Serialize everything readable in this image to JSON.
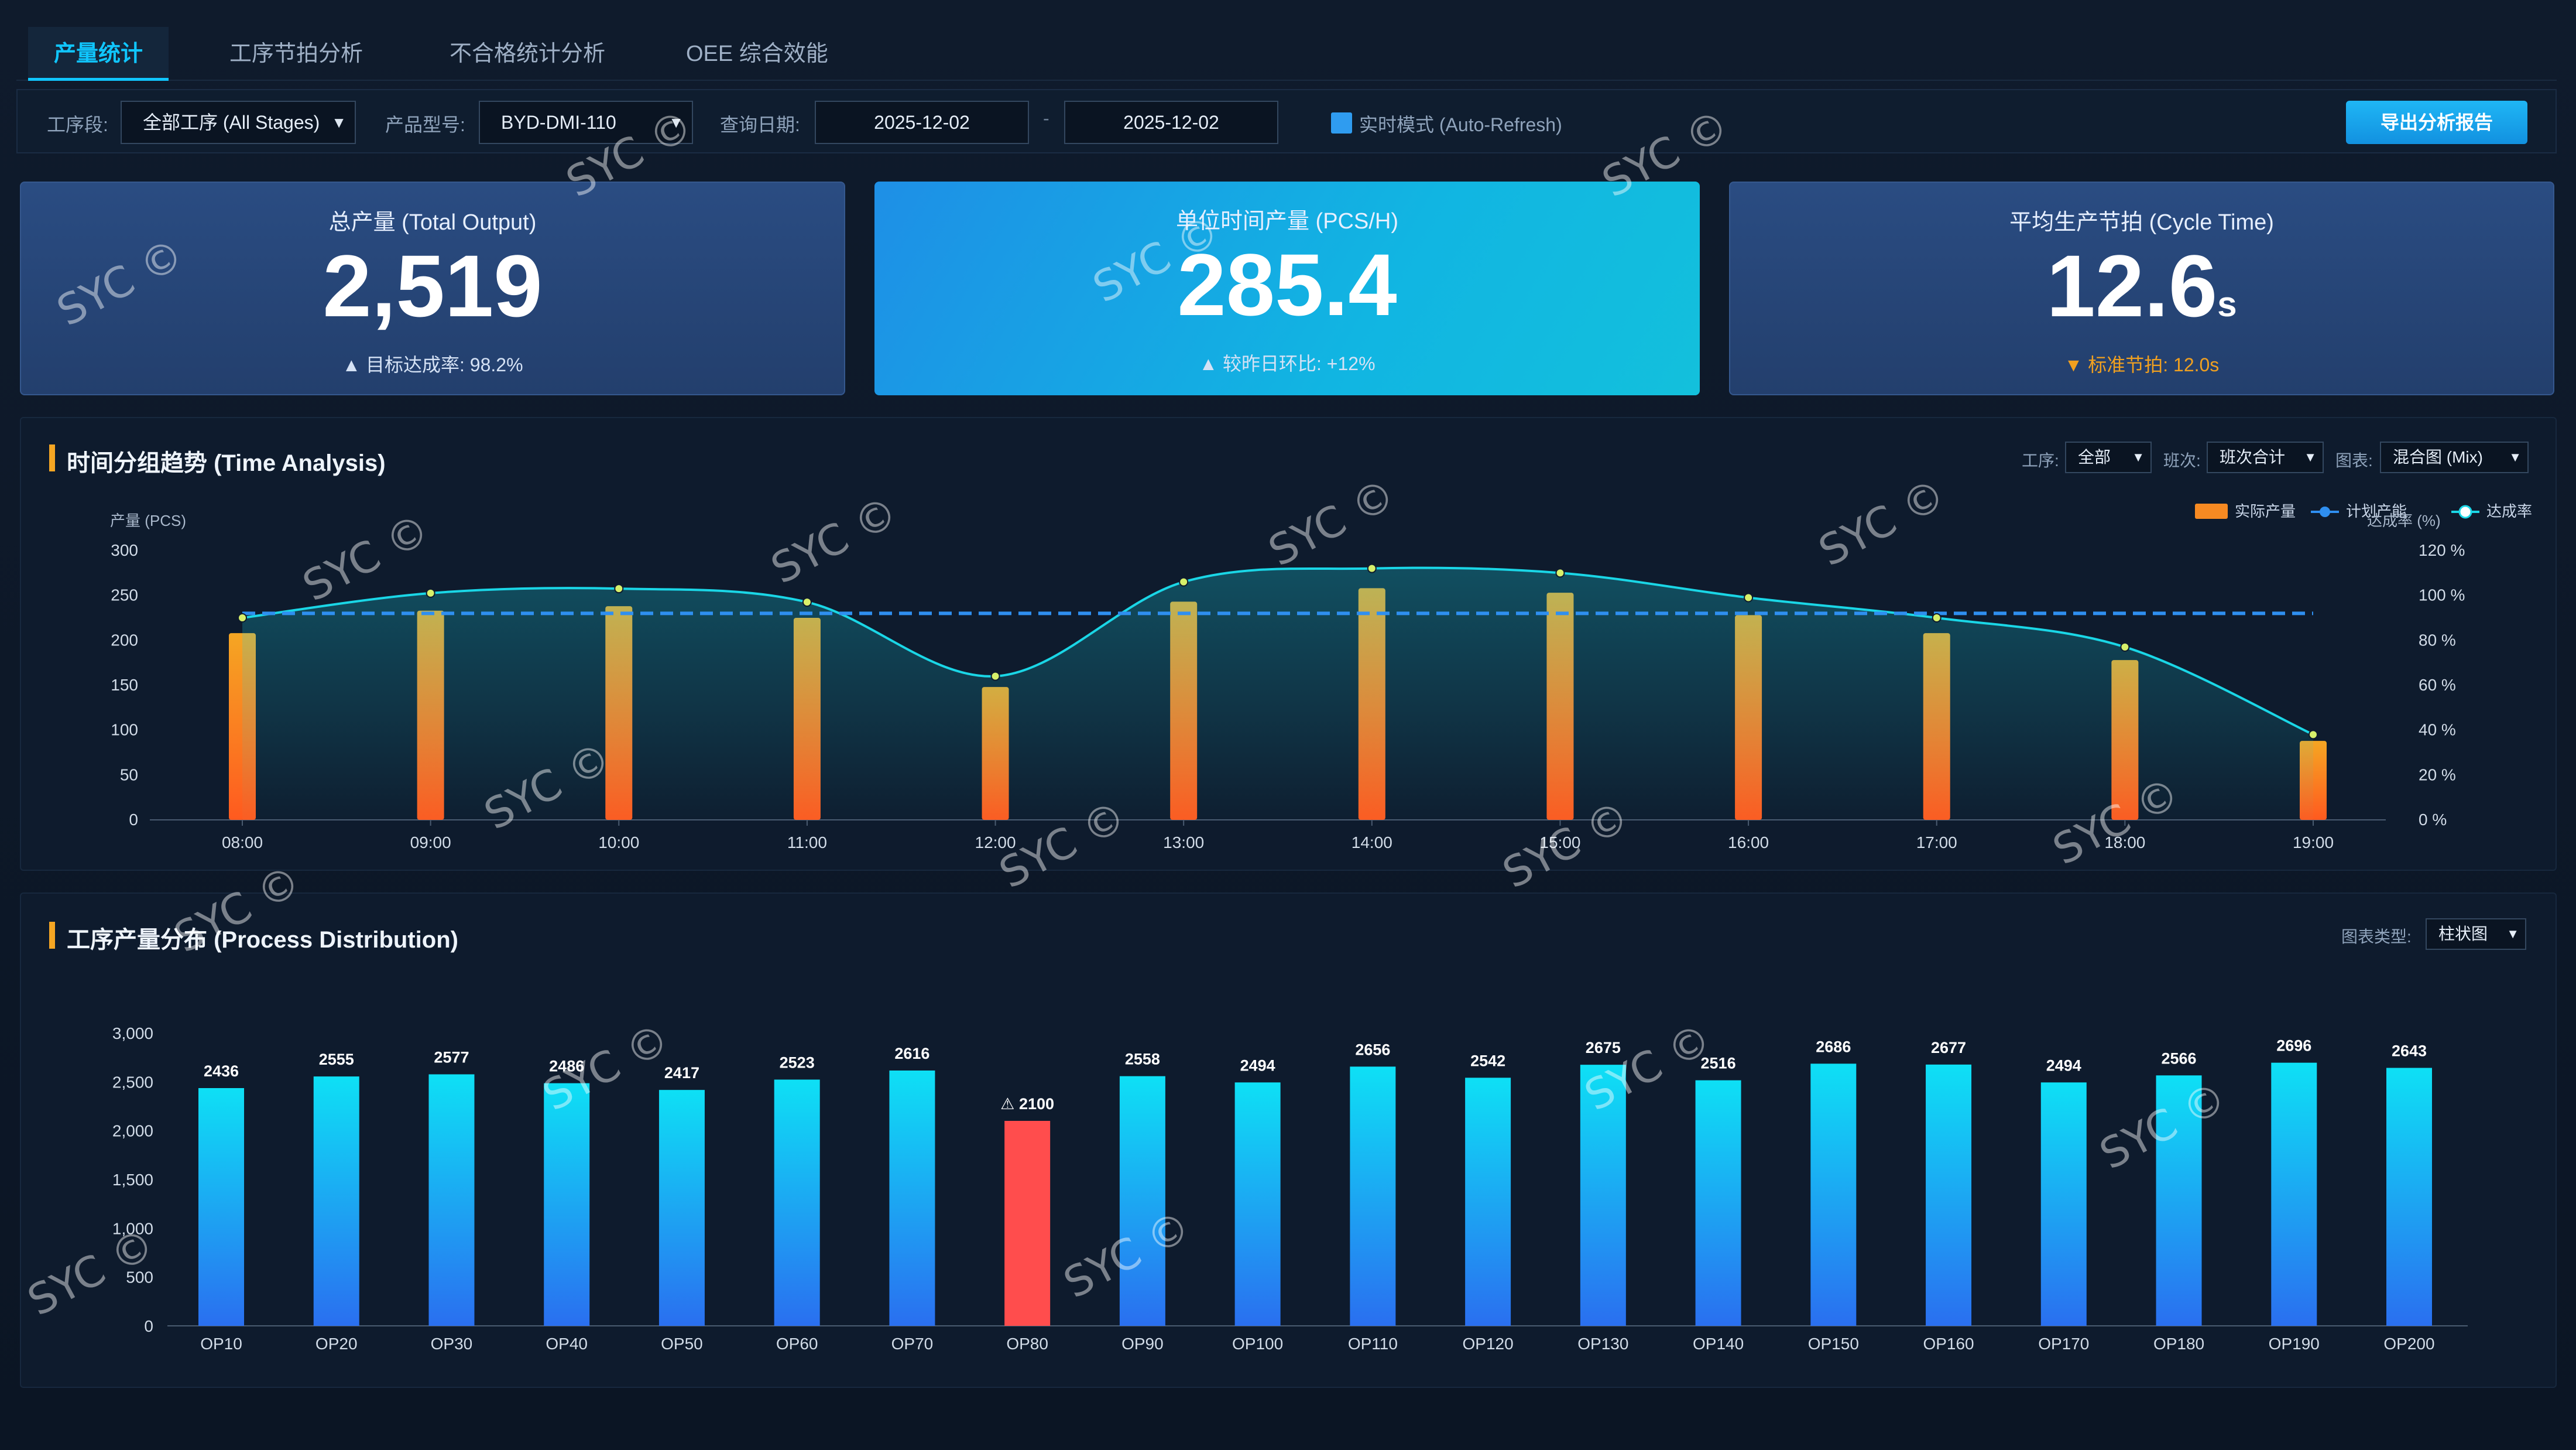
{
  "tabs": [
    {
      "label": "产量统计",
      "active": true
    },
    {
      "label": "工序节拍分析",
      "active": false
    },
    {
      "label": "不合格统计分析",
      "active": false
    },
    {
      "label": "OEE 综合效能",
      "active": false
    }
  ],
  "filters": {
    "stage_label": "工序段:",
    "stage_value": "全部工序 (All Stages)",
    "model_label": "产品型号:",
    "model_value": "BYD-DMI-110",
    "date_label": "查询日期:",
    "date_from": "2025-12-02",
    "date_sep": "-",
    "date_to": "2025-12-02",
    "realtime_label": "实时模式 (Auto-Refresh)",
    "realtime_checked": true,
    "export_label": "导出分析报告"
  },
  "kpis": {
    "total": {
      "label": "总产量 (Total Output)",
      "value": "2,519",
      "sub": "▲ 目标达成率: 98.2%"
    },
    "rate": {
      "label": "单位时间产量 (PCS/H)",
      "value": "285.4",
      "sub": "▲ 较昨日环比: +12%"
    },
    "cycle": {
      "label": "平均生产节拍 (Cycle Time)",
      "value": "12.6",
      "unit": "s",
      "sub": "▼ 标准节拍: 12.0s"
    }
  },
  "time_panel": {
    "title": "时间分组趋势 (Time Analysis)",
    "controls": {
      "process_label": "工序:",
      "process_value": "全部",
      "shift_label": "班次:",
      "shift_value": "班次合计",
      "chart_label": "图表:",
      "chart_value": "混合图 (Mix)"
    },
    "legend": {
      "actual": "实际产量",
      "plan": "计划产能",
      "rate": "达成率"
    }
  },
  "dist_panel": {
    "title": "工序产量分布 (Process Distribution)",
    "controls": {
      "type_label": "图表类型:",
      "type_value": "柱状图"
    }
  },
  "colors": {
    "accent": "#10c6ff",
    "bar_orange_top": "#f5a623",
    "bar_orange_bottom": "#ff5a1f",
    "line_cyan": "#1ad6e6",
    "plan_blue": "#2f8ff0",
    "bar_cyan_top": "#0ee0f5",
    "bar_blue_bottom": "#2a6ff0",
    "alert_red": "#ff4d4d"
  },
  "watermark_text": "SYC ©",
  "chart_data": [
    {
      "type": "bar",
      "title": "时间分组趋势 (Time Analysis)",
      "ylabel": "产量 (PCS)",
      "y2label": "达成率 (%)",
      "ylim": [
        0,
        300
      ],
      "y2lim": [
        0,
        120
      ],
      "yticks": [
        0,
        50,
        100,
        150,
        200,
        250,
        300
      ],
      "y2ticks": [
        "0 %",
        "20 %",
        "40 %",
        "60 %",
        "80 %",
        "100 %",
        "120 %"
      ],
      "categories": [
        "08:00",
        "09:00",
        "10:00",
        "11:00",
        "12:00",
        "13:00",
        "14:00",
        "15:00",
        "16:00",
        "17:00",
        "18:00",
        "19:00"
      ],
      "series": [
        {
          "name": "实际产量",
          "type": "bar",
          "values": [
            208,
            233,
            238,
            225,
            148,
            243,
            258,
            253,
            228,
            208,
            178,
            88
          ]
        },
        {
          "name": "计划产能",
          "type": "line-dashed",
          "values": [
            230,
            230,
            230,
            230,
            230,
            230,
            230,
            230,
            230,
            230,
            230,
            230
          ]
        },
        {
          "name": "达成率",
          "type": "line",
          "axis": "right",
          "values": [
            90,
            101,
            103,
            97,
            64,
            106,
            112,
            110,
            99,
            90,
            77,
            38
          ]
        }
      ],
      "grid": false,
      "legend": "top-right"
    },
    {
      "type": "bar",
      "title": "工序产量分布 (Process Distribution)",
      "ylim": [
        0,
        3000
      ],
      "yticks": [
        "0",
        "500",
        "1,000",
        "1,500",
        "2,000",
        "2,500",
        "3,000"
      ],
      "categories": [
        "OP10",
        "OP20",
        "OP30",
        "OP40",
        "OP50",
        "OP60",
        "OP70",
        "OP80",
        "OP90",
        "OP100",
        "OP110",
        "OP120",
        "OP130",
        "OP140",
        "OP150",
        "OP160",
        "OP170",
        "OP180",
        "OP190",
        "OP200"
      ],
      "values": [
        2436,
        2555,
        2577,
        2486,
        2417,
        2523,
        2616,
        2100,
        2558,
        2494,
        2656,
        2542,
        2675,
        2516,
        2686,
        2677,
        2494,
        2566,
        2696,
        2643
      ],
      "labels": [
        "2436",
        "2555",
        "2577",
        "2486",
        "2417",
        "2523",
        "2616",
        "⚠ 2100",
        "2558",
        "2494",
        "2656",
        "2542",
        "2675",
        "2516",
        "2686",
        "2677",
        "2494",
        "2566",
        "2696",
        "2643"
      ],
      "highlight_index": 7,
      "grid": false
    }
  ]
}
